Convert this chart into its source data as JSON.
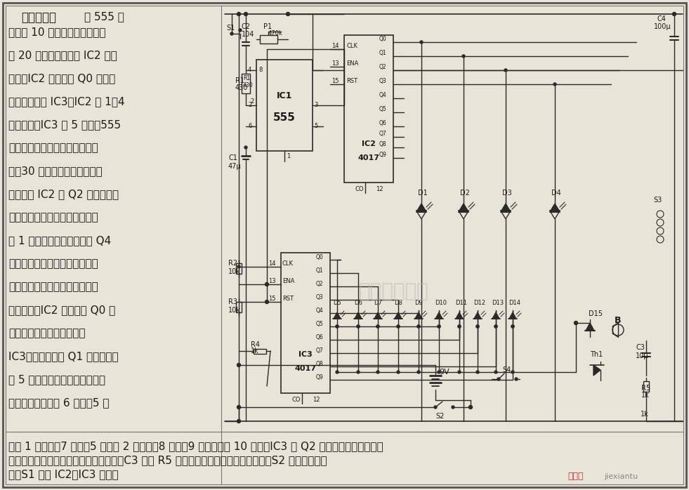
{
  "figsize": [
    9.81,
    6.98
  ],
  "dpi": 100,
  "bg_color": "#e8e4d8",
  "line_color": "#2a2a2a",
  "text_color": "#1a1a1a",
  "title_text": "烹调定时器",
  "subtitle_text": "由 555 定",
  "body_lines": [
    "时器每 10 秒产生一个脉冲宽度",
    "为 20 秒的振荡信号给 IC2 提供",
    "脉冲。IC2 的输出端 Q0 端接到",
    "下一个计数器 IC3。IC2 为 1～4",
    "分钟计时，IC3 满 5 计时。555",
    "定时器通电后输出为高、随后变",
    "低　30 秒后，另一个时钟脉冲",
    "到达，使 IC2 的 Q2 变高，这使",
    "第一个双色发光二极管点亮，指",
    "示 1 分钟已经过去。输出端 Q4",
    "使第二个双色二极管亮，直到变",
    "色管全被点亮。在接下来的两个",
    "脉冲过后，IC2 的输出端 Q0 又",
    "变高，由低到高的脉冲驱动",
    "IC3，使其输出端 Q1 变高，这使",
    "在 5 分钟处的二极管亮。再次双",
    "色二极管亮，指示 6 分钟（5 分"
  ],
  "bottom_lines": [
    "钟加 1 分钟）、7 分钟（5 分钟加 2 分钟）、8 分钟、9 分钟。在第 10 分钟，IC3 的 Q2 位置的第二个发光二极",
    "管亮。当选择时间处的发光二极管亮时，C3 通过 R5 放电，触发可控硅，蜂鸣器发声。S2 按下可关闭发",
    "音。S1 可使 IC2、IC3 复位。"
  ],
  "watermark": "杭州裕睿科技",
  "site_text": "捧线图",
  "site_url": "jiexiantu"
}
